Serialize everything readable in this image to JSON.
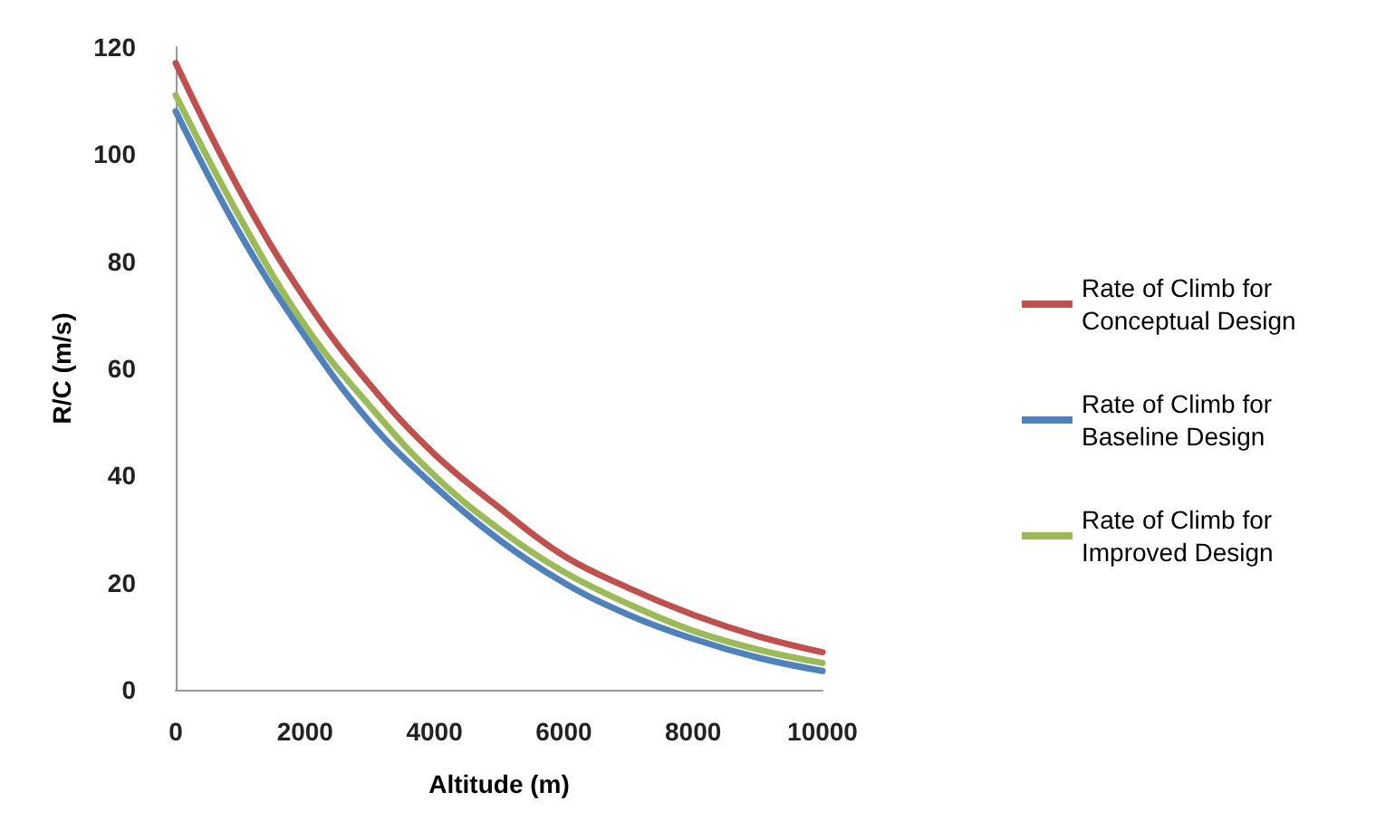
{
  "chart_data": {
    "type": "line",
    "xlabel": "Altitude (m)",
    "ylabel": "R/C (m/s)",
    "x": [
      0,
      1000,
      2000,
      3000,
      4000,
      5000,
      6000,
      7000,
      8000,
      9000,
      10000
    ],
    "xlim": [
      0,
      10000
    ],
    "xticks": [
      0,
      2000,
      4000,
      6000,
      8000,
      10000
    ],
    "ylim": [
      0,
      120
    ],
    "yticks": [
      0,
      20,
      40,
      60,
      80,
      100,
      120
    ],
    "grid": false,
    "legend": "right",
    "marker": "none",
    "line_style": "solid",
    "series": [
      {
        "name": "Rate of Climb for Conceptual Design",
        "color": "#c0504d",
        "values": [
          117,
          93,
          73,
          57,
          44,
          34,
          25,
          19,
          14,
          10,
          7
        ]
      },
      {
        "name": "Rate of Climb for Baseline Design",
        "color": "#4f81bd",
        "values": [
          108,
          85,
          66,
          50,
          38,
          28,
          20,
          14,
          9.5,
          6,
          3.5
        ]
      },
      {
        "name": "Rate of Climb for Improved Design",
        "color": "#9bbb59",
        "values": [
          111,
          88,
          68,
          53,
          40,
          30,
          22,
          16,
          11,
          7.5,
          5
        ]
      }
    ]
  }
}
